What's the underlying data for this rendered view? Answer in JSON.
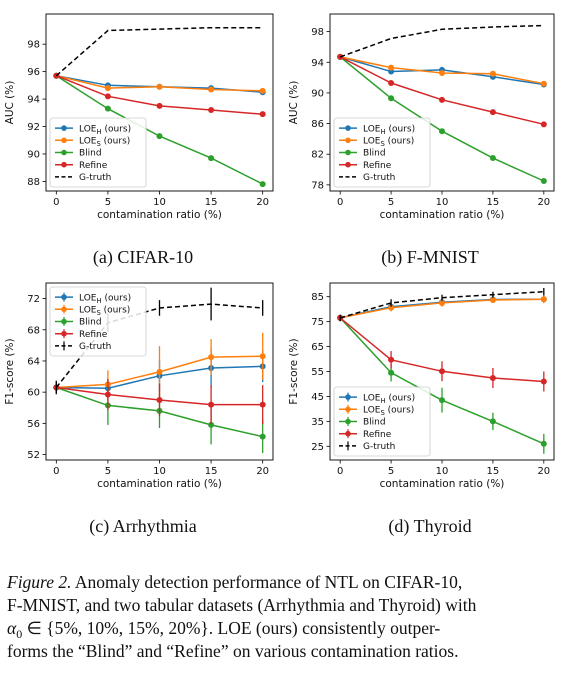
{
  "chart_data": [
    {
      "type": "line",
      "subcaption": "(a) CIFAR-10",
      "xlabel": "contamination ratio (%)",
      "ylabel": "AUC (%)",
      "x": [
        0,
        5,
        10,
        15,
        20
      ],
      "xticks": [
        "0",
        "5",
        "10",
        "15",
        "20"
      ],
      "xlim": [
        -1,
        21
      ],
      "ylim": [
        87.3,
        100.2
      ],
      "yticks": [
        88,
        90,
        92,
        94,
        96,
        98
      ],
      "legend_position": "lower-left",
      "series": [
        {
          "name": "LOE",
          "sub": "H",
          "suffix": " (ours)",
          "color": "#1f77b4",
          "style": "solid",
          "marker": true,
          "values": [
            95.7,
            95.0,
            94.9,
            94.8,
            94.5
          ]
        },
        {
          "name": "LOE",
          "sub": "S",
          "suffix": " (ours)",
          "color": "#ff7f0e",
          "style": "solid",
          "marker": true,
          "values": [
            95.7,
            94.8,
            94.9,
            94.7,
            94.6
          ]
        },
        {
          "name": "Blind",
          "color": "#2ca02c",
          "style": "solid",
          "marker": true,
          "values": [
            95.7,
            93.3,
            91.3,
            89.7,
            87.8
          ]
        },
        {
          "name": "Refine",
          "color": "#d62728",
          "style": "solid",
          "marker": true,
          "values": [
            95.7,
            94.2,
            93.5,
            93.2,
            92.9
          ]
        },
        {
          "name": "G-truth",
          "color": "#000000",
          "style": "dashed",
          "marker": false,
          "values": [
            95.7,
            99.0,
            99.1,
            99.2,
            99.2
          ]
        }
      ]
    },
    {
      "type": "line",
      "subcaption": "(b) F-MNIST",
      "xlabel": "contamination ratio (%)",
      "ylabel": "AUC (%)",
      "x": [
        0,
        5,
        10,
        15,
        20
      ],
      "xticks": [
        "0",
        "5",
        "10",
        "15",
        "20"
      ],
      "xlim": [
        -1,
        21
      ],
      "ylim": [
        77.2,
        100.3
      ],
      "yticks": [
        78,
        82,
        86,
        90,
        94,
        98
      ],
      "legend_position": "lower-left",
      "series": [
        {
          "name": "LOE",
          "sub": "H",
          "suffix": " (ours)",
          "color": "#1f77b4",
          "style": "solid",
          "marker": true,
          "values": [
            94.7,
            92.8,
            93.0,
            92.1,
            91.1
          ]
        },
        {
          "name": "LOE",
          "sub": "S",
          "suffix": " (ours)",
          "color": "#ff7f0e",
          "style": "solid",
          "marker": true,
          "values": [
            94.7,
            93.3,
            92.6,
            92.5,
            91.2
          ]
        },
        {
          "name": "Blind",
          "color": "#2ca02c",
          "style": "solid",
          "marker": true,
          "values": [
            94.7,
            89.3,
            85.0,
            81.5,
            78.5
          ]
        },
        {
          "name": "Refine",
          "color": "#d62728",
          "style": "solid",
          "marker": true,
          "values": [
            94.7,
            91.3,
            89.1,
            87.5,
            85.9
          ]
        },
        {
          "name": "G-truth",
          "color": "#000000",
          "style": "dashed",
          "marker": false,
          "values": [
            94.7,
            97.1,
            98.3,
            98.6,
            98.8
          ]
        }
      ]
    },
    {
      "type": "line",
      "subcaption": "(c) Arrhythmia",
      "xlabel": "contamination ratio (%)",
      "ylabel": "F1-score (%)",
      "x": [
        0,
        5,
        10,
        15,
        20
      ],
      "xticks": [
        "0",
        "5",
        "10",
        "15",
        "20"
      ],
      "xlim": [
        -1,
        21
      ],
      "ylim": [
        51.3,
        74.0
      ],
      "yticks": [
        52,
        56,
        60,
        64,
        68,
        72
      ],
      "legend_position": "upper-left",
      "series": [
        {
          "name": "LOE",
          "sub": "H",
          "suffix": " (ours)",
          "color": "#1f77b4",
          "style": "solid",
          "marker": true,
          "values": [
            60.6,
            60.5,
            62.1,
            63.1,
            63.3
          ],
          "errors": [
            0.8,
            1.2,
            2.0,
            2.5,
            2.0
          ]
        },
        {
          "name": "LOE",
          "sub": "S",
          "suffix": " (ours)",
          "color": "#ff7f0e",
          "style": "solid",
          "marker": true,
          "values": [
            60.6,
            61.0,
            62.6,
            64.5,
            64.6
          ],
          "errors": [
            0.8,
            1.8,
            3.3,
            2.3,
            3.0
          ]
        },
        {
          "name": "Blind",
          "color": "#2ca02c",
          "style": "solid",
          "marker": true,
          "values": [
            60.6,
            58.3,
            57.6,
            55.8,
            54.3
          ],
          "errors": [
            0.9,
            2.5,
            2.2,
            2.5,
            2.1
          ]
        },
        {
          "name": "Refine",
          "color": "#d62728",
          "style": "solid",
          "marker": true,
          "values": [
            60.6,
            59.7,
            59.0,
            58.4,
            58.4
          ],
          "errors": [
            0.8,
            2.0,
            2.1,
            2.5,
            2.5
          ]
        },
        {
          "name": "G-truth",
          "color": "#000000",
          "style": "dashed",
          "marker": false,
          "values": [
            60.6,
            68.9,
            70.8,
            71.3,
            70.8
          ],
          "errors": [
            0.8,
            1.2,
            1.0,
            2.1,
            1.0
          ]
        }
      ]
    },
    {
      "type": "line",
      "subcaption": "(d) Thyroid",
      "xlabel": "contamination ratio (%)",
      "ylabel": "F1-score (%)",
      "x": [
        0,
        5,
        10,
        15,
        20
      ],
      "xticks": [
        "0",
        "5",
        "10",
        "15",
        "20"
      ],
      "xlim": [
        -1,
        21
      ],
      "ylim": [
        19.5,
        90.5
      ],
      "yticks": [
        25,
        35,
        45,
        55,
        65,
        75,
        85
      ],
      "legend_position": "lower-left",
      "series": [
        {
          "name": "LOE",
          "sub": "H",
          "suffix": " (ours)",
          "color": "#1f77b4",
          "style": "solid",
          "marker": true,
          "values": [
            76.5,
            81.0,
            82.8,
            83.9,
            84.0
          ],
          "errors": [
            1.3,
            1.5,
            1.5,
            1.2,
            1.5
          ]
        },
        {
          "name": "LOE",
          "sub": "S",
          "suffix": " (ours)",
          "color": "#ff7f0e",
          "style": "solid",
          "marker": true,
          "values": [
            76.5,
            80.6,
            82.5,
            83.7,
            84.0
          ],
          "errors": [
            1.3,
            1.5,
            1.5,
            1.2,
            1.5
          ]
        },
        {
          "name": "Blind",
          "color": "#2ca02c",
          "style": "solid",
          "marker": true,
          "values": [
            76.5,
            54.5,
            43.5,
            35.0,
            26.0
          ],
          "errors": [
            1.3,
            3.5,
            5.0,
            3.5,
            4.0
          ]
        },
        {
          "name": "Refine",
          "color": "#d62728",
          "style": "solid",
          "marker": true,
          "values": [
            76.5,
            59.7,
            55.1,
            52.4,
            51.0
          ],
          "errors": [
            1.3,
            3.5,
            4.0,
            4.0,
            4.0
          ]
        },
        {
          "name": "G-truth",
          "color": "#000000",
          "style": "dashed",
          "marker": false,
          "values": [
            76.5,
            82.5,
            84.6,
            85.8,
            87.0
          ],
          "errors": [
            1.3,
            1.5,
            1.2,
            1.2,
            1.5
          ]
        }
      ]
    }
  ],
  "caption": {
    "lines": [
      [
        {
          "t": "Figure 2.",
          "it": true
        },
        {
          "t": " Anomaly detection performance of NTL on CIFAR-10,"
        }
      ],
      [
        {
          "t": "F-MNIST, and two tabular datasets (Arrhythmia and Thyroid) with"
        }
      ],
      [
        {
          "t": "α",
          "it": true
        },
        {
          "t": "0",
          "sub": true
        },
        {
          "t": " ∈ {5%, 10%, 15%, 20%}.  LOE (ours) consistently outper-"
        }
      ],
      [
        {
          "t": "forms the “Blind” and “Refine” on various contamination ratios."
        }
      ]
    ]
  }
}
